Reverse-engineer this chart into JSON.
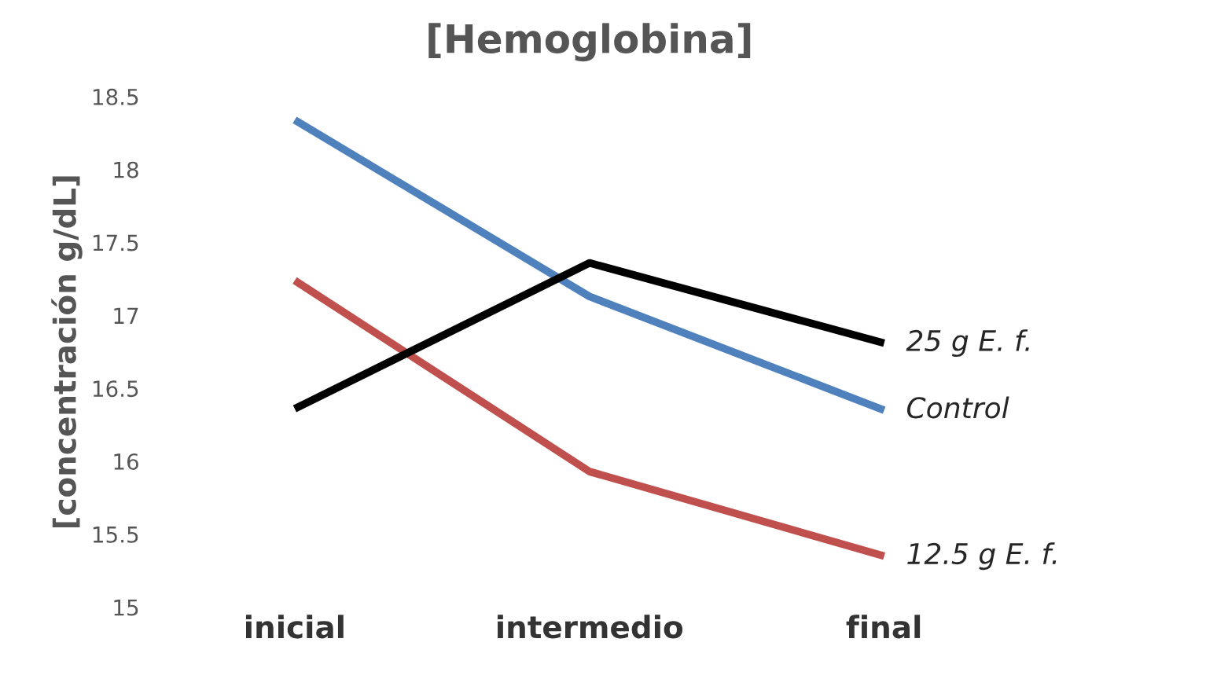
{
  "chart_data": {
    "type": "line",
    "title": "[Hemoglobina]",
    "ylabel": "[concentración g/dL]",
    "categories": [
      "inicial",
      "intermedio",
      "final"
    ],
    "series": [
      {
        "name": "Control",
        "color": "#4f81bd",
        "values": [
          18.34,
          17.13,
          16.35
        ]
      },
      {
        "name": "12.5 g E. f.",
        "color": "#c0504d",
        "values": [
          17.24,
          15.93,
          15.35
        ]
      },
      {
        "name": "25 g E. f.",
        "color": "#000000",
        "values": [
          16.36,
          17.36,
          16.81
        ]
      }
    ],
    "ylim": [
      15,
      18.5
    ],
    "yticks": [
      15,
      15.5,
      16,
      16.5,
      17,
      17.5,
      18,
      18.5
    ],
    "grid": false,
    "legend": false,
    "marker": "none",
    "line_style": "solid"
  }
}
